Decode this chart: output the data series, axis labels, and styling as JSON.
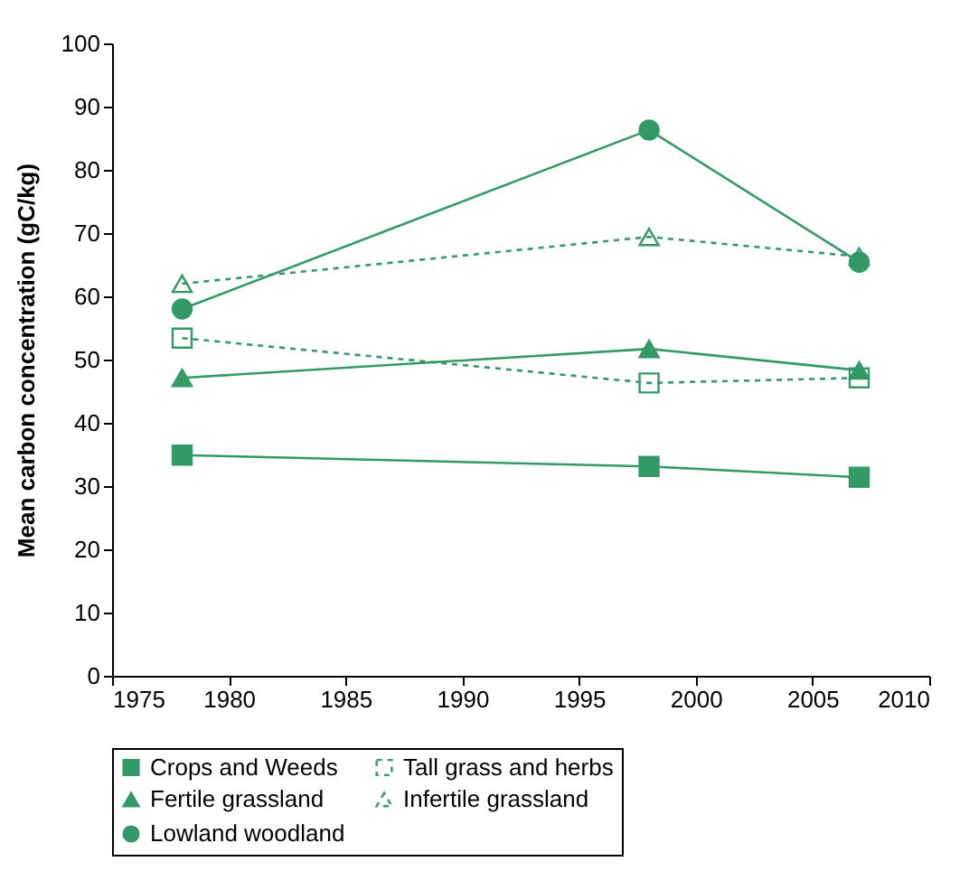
{
  "chart_data": {
    "type": "line",
    "ylabel": "Mean carbon concentration (gC/kg)",
    "x": [
      1978,
      1998,
      2007
    ],
    "xlim": [
      1975,
      2010
    ],
    "xticks": [
      1975,
      1980,
      1985,
      1990,
      1995,
      2000,
      2005,
      2010
    ],
    "ylim": [
      0,
      100
    ],
    "yticks": [
      0,
      10,
      20,
      30,
      40,
      50,
      60,
      70,
      80,
      90,
      100
    ],
    "grid": false,
    "legend": "bottom",
    "series": [
      {
        "name": "Crops and Weeds",
        "color": "#339966",
        "values": [
          34.9,
          33.1,
          31.4
        ],
        "marker": "square",
        "line_style": "solid"
      },
      {
        "name": "Tall grass and herbs",
        "color": "#339966",
        "values": [
          53.4,
          46.3,
          47.1
        ],
        "marker": "square",
        "line_style": "dashed"
      },
      {
        "name": "Fertile grassland",
        "color": "#339966",
        "values": [
          47.1,
          51.7,
          48.3
        ],
        "marker": "triangle",
        "line_style": "solid"
      },
      {
        "name": "Infertile grassland",
        "color": "#339966",
        "values": [
          62,
          69.4,
          66.3
        ],
        "marker": "triangle",
        "line_style": "dashed"
      },
      {
        "name": "Lowland  woodland",
        "color": "#339966",
        "values": [
          58,
          86.3,
          65.4
        ],
        "marker": "circle",
        "line_style": "solid"
      }
    ]
  }
}
